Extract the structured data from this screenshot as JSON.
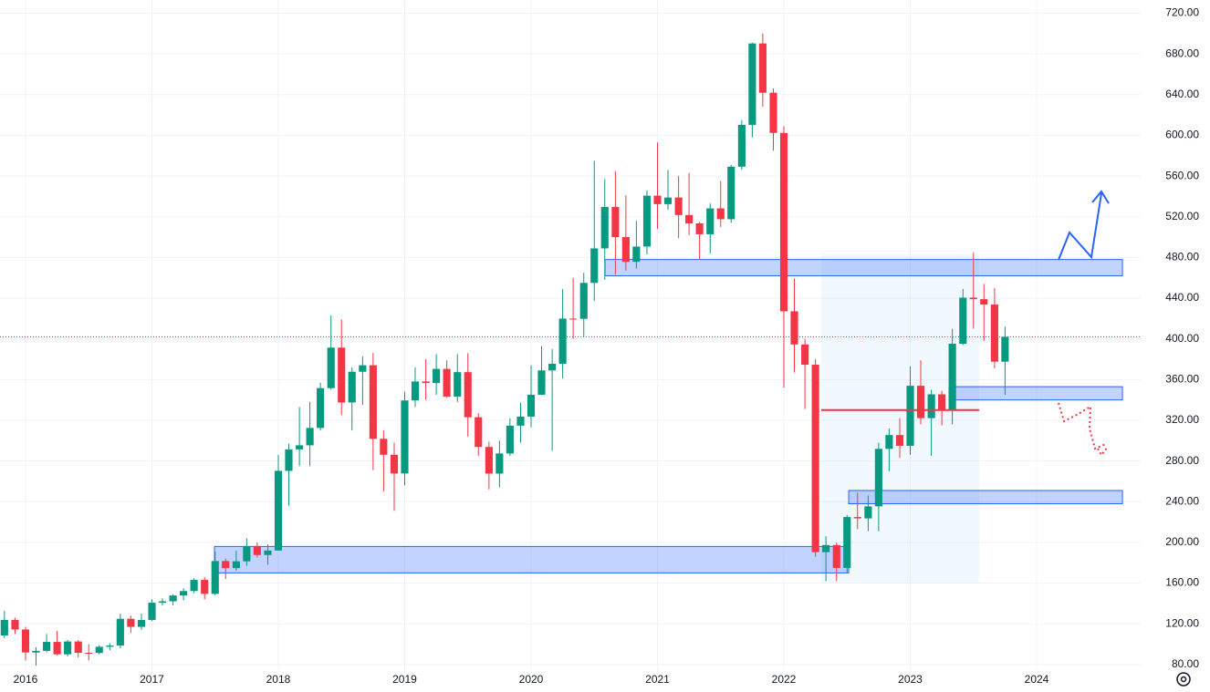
{
  "chart_data": {
    "type": "candlestick",
    "xlim": [
      2015.798,
      2024.823
    ],
    "xticks": [
      2016,
      2017,
      2018,
      2019,
      2020,
      2021,
      2022,
      2023,
      2024
    ],
    "ylim": [
      70,
      733
    ],
    "yticks": [
      {
        "value": 80,
        "label": "80.00"
      },
      {
        "value": 120,
        "label": "120.00"
      },
      {
        "value": 160,
        "label": "160.00"
      },
      {
        "value": 200,
        "label": "200.00"
      },
      {
        "value": 240,
        "label": "240.00"
      },
      {
        "value": 280,
        "label": "280.00"
      },
      {
        "value": 320,
        "label": "320.00"
      },
      {
        "value": 360,
        "label": "360.00"
      },
      {
        "value": 400,
        "label": "400.00"
      },
      {
        "value": 440,
        "label": "440.00"
      },
      {
        "value": 480,
        "label": "480.00"
      },
      {
        "value": 520,
        "label": "520.00"
      },
      {
        "value": 560,
        "label": "560.00"
      },
      {
        "value": 600,
        "label": "600.00"
      },
      {
        "value": 640,
        "label": "640.00"
      },
      {
        "value": 680,
        "label": "680.00"
      },
      {
        "value": 720,
        "label": "720.00"
      }
    ],
    "grid": true,
    "up_color": "#089981",
    "down_color": "#f23645",
    "x": [
      2015.833,
      2015.917,
      2016.0,
      2016.083,
      2016.167,
      2016.25,
      2016.333,
      2016.417,
      2016.5,
      2016.583,
      2016.667,
      2016.75,
      2016.833,
      2016.917,
      2017.0,
      2017.083,
      2017.167,
      2017.25,
      2017.333,
      2017.417,
      2017.5,
      2017.583,
      2017.667,
      2017.75,
      2017.833,
      2017.917,
      2018.0,
      2018.083,
      2018.167,
      2018.25,
      2018.333,
      2018.417,
      2018.5,
      2018.583,
      2018.667,
      2018.75,
      2018.833,
      2018.917,
      2019.0,
      2019.083,
      2019.167,
      2019.25,
      2019.333,
      2019.417,
      2019.5,
      2019.583,
      2019.667,
      2019.75,
      2019.833,
      2019.917,
      2020.0,
      2020.083,
      2020.167,
      2020.25,
      2020.333,
      2020.417,
      2020.5,
      2020.583,
      2020.667,
      2020.75,
      2020.833,
      2020.917,
      2021.0,
      2021.083,
      2021.167,
      2021.25,
      2021.333,
      2021.417,
      2021.5,
      2021.583,
      2021.667,
      2021.75,
      2021.833,
      2021.917,
      2022.0,
      2022.083,
      2022.167,
      2022.25,
      2022.333,
      2022.417,
      2022.5,
      2022.583,
      2022.667,
      2022.75,
      2022.833,
      2022.917,
      2023.0,
      2023.083,
      2023.167,
      2023.25,
      2023.333,
      2023.417,
      2023.5,
      2023.583,
      2023.667,
      2023.75
    ],
    "open": [
      108.5,
      123.8,
      114.4,
      91.8,
      93.4,
      102.2,
      90.0,
      102.6,
      91.5,
      91.3,
      97.4,
      98.6,
      124.9,
      117.0,
      123.8,
      140.7,
      142.1,
      147.8,
      152.2,
      163.1,
      149.4,
      181.7,
      174.7,
      181.4,
      196.4,
      187.6,
      192.0,
      270.3,
      291.4,
      295.4,
      312.5,
      351.6,
      391.4,
      337.5,
      367.7,
      374.1,
      301.8,
      286.1,
      267.7,
      339.5,
      358.1,
      356.6,
      370.5,
      343.3,
      367.3,
      323.0,
      293.8,
      267.6,
      287.4,
      314.7,
      323.6,
      345.1,
      369.0,
      375.5,
      419.9,
      419.7,
      455.0,
      488.9,
      529.6,
      500.0,
      475.7,
      490.7,
      540.7,
      532.4,
      538.9,
      521.7,
      513.5,
      502.8,
      528.2,
      517.6,
      569.2,
      610.3,
      690.3,
      641.9,
      602.4,
      427.1,
      394.5,
      374.6,
      190.4,
      197.4,
      174.9,
      224.9,
      223.6,
      235.4,
      291.9,
      305.5,
      294.9,
      353.9,
      322.1,
      345.5,
      329.9,
      395.2,
      440.5,
      439.0,
      433.7,
      377.6
    ],
    "high": [
      133,
      126,
      117,
      97,
      110,
      113,
      104,
      104,
      100,
      99,
      101,
      130,
      128,
      130,
      144,
      145,
      149,
      155,
      165,
      166,
      191,
      184,
      192,
      204,
      200,
      198,
      286,
      297,
      333,
      338,
      357,
      423,
      419,
      372,
      383,
      386,
      310,
      298,
      348,
      372,
      380,
      385,
      379,
      385,
      386,
      327,
      299,
      300,
      322,
      337,
      374,
      393,
      390,
      449,
      460,
      465,
      575,
      557,
      565,
      541,
      516,
      546,
      593,
      566,
      560,
      563,
      515,
      533,
      555,
      571,
      615,
      691,
      700,
      646,
      609,
      459,
      400,
      380,
      206,
      200,
      227,
      249,
      246,
      298,
      312,
      322,
      373,
      379,
      350,
      349,
      410,
      449,
      485,
      454,
      450,
      412
    ],
    "low": [
      106,
      110,
      84,
      79,
      92,
      89,
      88,
      87,
      84,
      90,
      94,
      96,
      111,
      114,
      123,
      138,
      138,
      143,
      150,
      144,
      148,
      164,
      172,
      177,
      185,
      178,
      192,
      236,
      275,
      275,
      310,
      350,
      325,
      310,
      335,
      271,
      250,
      231,
      256,
      333,
      340,
      345,
      342,
      338,
      304,
      285,
      252,
      254,
      285,
      298,
      313,
      345,
      290,
      361,
      400,
      402,
      437,
      458,
      463,
      467,
      469,
      483,
      508,
      527,
      499,
      502,
      478,
      484,
      510,
      514,
      566,
      598,
      628,
      585,
      352,
      367,
      331,
      186,
      162,
      162,
      170,
      213,
      211,
      211,
      270,
      283,
      286,
      316,
      285,
      315,
      316,
      394,
      410,
      398,
      371,
      345
    ],
    "close": [
      123.8,
      114.4,
      91.8,
      93.4,
      102.2,
      90.0,
      102.6,
      91.5,
      91.3,
      97.4,
      98.6,
      124.9,
      117.0,
      123.8,
      140.7,
      142.1,
      147.8,
      152.2,
      163.1,
      149.4,
      181.7,
      174.7,
      181.4,
      196.4,
      187.6,
      192.0,
      270.3,
      291.4,
      295.4,
      312.5,
      351.6,
      391.4,
      337.5,
      367.7,
      374.1,
      301.8,
      286.1,
      267.7,
      339.5,
      358.1,
      356.6,
      370.5,
      343.3,
      367.3,
      323.0,
      293.8,
      267.6,
      287.4,
      314.7,
      323.6,
      345.1,
      369.0,
      375.5,
      419.9,
      419.7,
      455.0,
      488.9,
      529.6,
      500.0,
      475.7,
      490.7,
      540.7,
      532.4,
      538.9,
      521.7,
      513.5,
      502.8,
      528.2,
      517.6,
      569.2,
      610.3,
      690.3,
      641.9,
      602.4,
      427.1,
      394.5,
      374.6,
      190.4,
      197.4,
      174.9,
      224.9,
      223.6,
      235.4,
      291.9,
      305.5,
      294.9,
      353.9,
      322.1,
      345.5,
      329.9,
      395.2,
      440.5,
      439.0,
      433.7,
      377.6,
      402.0
    ],
    "zones": [
      {
        "x": [
          2020.585,
          2024.679
        ],
        "y": [
          462,
          478
        ]
      },
      {
        "x": [
          2023.307,
          2024.679
        ],
        "y": [
          340,
          353
        ]
      },
      {
        "x": [
          2022.513,
          2024.679
        ],
        "y": [
          238,
          251
        ]
      },
      {
        "x": [
          2017.495,
          2022.513
        ],
        "y": [
          170,
          196
        ]
      }
    ],
    "profile": {
      "x": [
        2022.296,
        2023.545
      ],
      "y": [
        160,
        483
      ],
      "poc": 330
    },
    "last_price": 402
  }
}
